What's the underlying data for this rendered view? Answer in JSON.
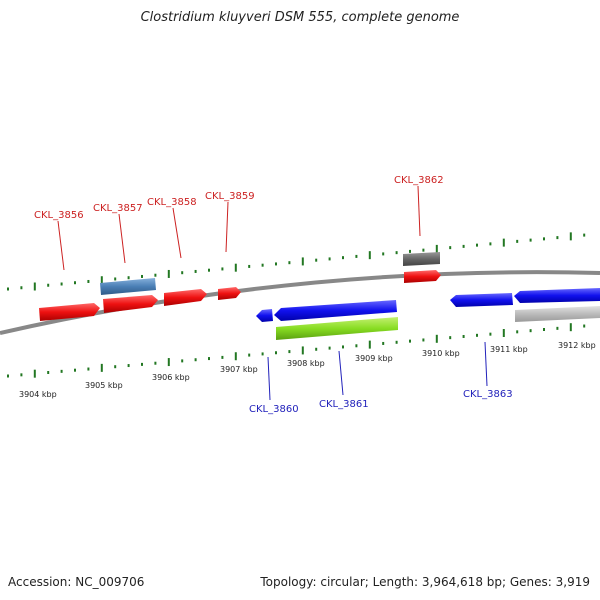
{
  "title": "Clostridium kluyveri DSM 555, complete genome",
  "footer": {
    "accession": "Accession: NC_009706",
    "summary": "Topology: circular; Length: 3,964,618 bp; Genes: 3,919"
  },
  "colors": {
    "forward_gene": "#ee1111",
    "reverse_gene": "#1111ee",
    "forward_label": "#cc2222",
    "reverse_label": "#2222bb",
    "tick": "#227722",
    "backbone": "#888888",
    "steelblue_feature": "#4a7fb5",
    "gray_feature": "#666666",
    "lightgray_feature": "#bbbbbb",
    "green_feature": "#88dd22"
  },
  "scale_labels": [
    "3904 kbp",
    "3905 kbp",
    "3906 kbp",
    "3907 kbp",
    "3908 kbp",
    "3909 kbp",
    "3910 kbp",
    "3911 kbp",
    "3912 kbp"
  ],
  "gene_labels": {
    "forward": [
      "CKL_3856",
      "CKL_3857",
      "CKL_3858",
      "CKL_3859",
      "CKL_3862"
    ],
    "reverse": [
      "CKL_3860",
      "CKL_3861",
      "CKL_3863"
    ]
  }
}
